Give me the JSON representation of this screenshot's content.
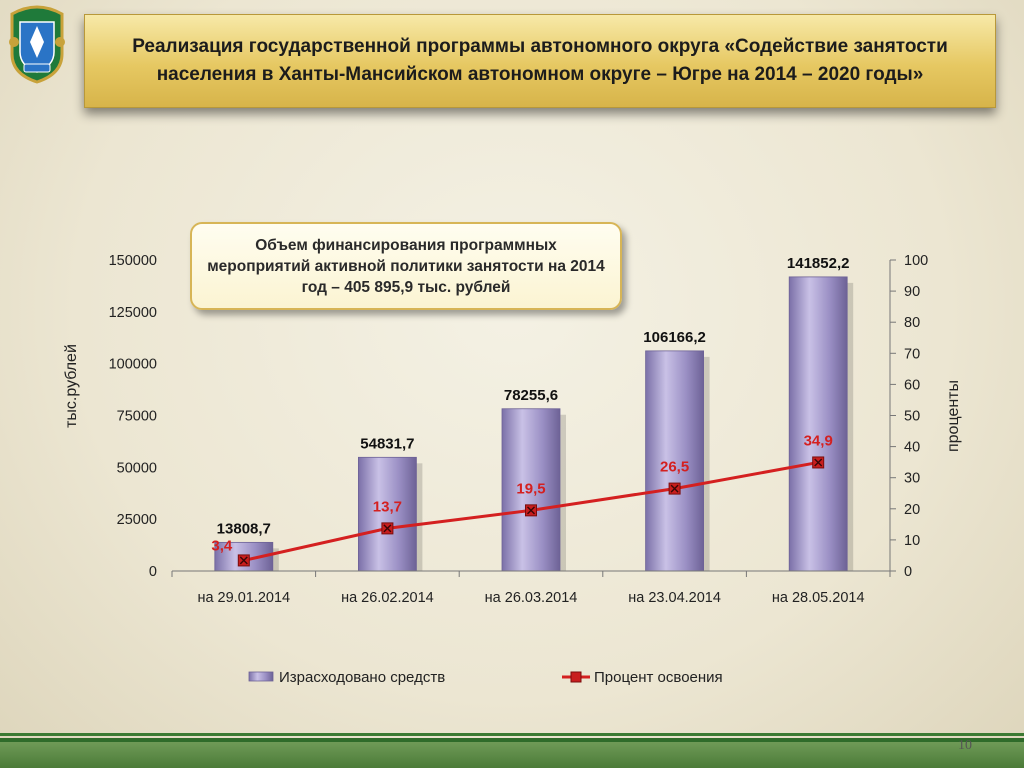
{
  "header": {
    "title": "Реализация государственной программы автономного округа «Содействие занятости населения в Ханты-Мансийском автономном  округе – Югре на 2014 – 2020 годы»"
  },
  "callout": {
    "text": "Объем финансирования программных мероприятий активной политики занятости на 2014 год – 405 895,9 тыс. рублей"
  },
  "page_number": "10",
  "colors": {
    "bar": "#9a8fc4",
    "bar_dark": "#6d6296",
    "line": "#d42020",
    "marker": "#c81e1e",
    "pct_label": "#d42020",
    "footer": "#3b7a33"
  },
  "chart_data": {
    "type": "bar",
    "categories": [
      "на 29.01.2014",
      "на 26.02.2014",
      "на 26.03.2014",
      "на 23.04.2014",
      "на 28.05.2014"
    ],
    "series": [
      {
        "name": "Израсходовано  средств",
        "type": "bar",
        "axis": "left",
        "values": [
          13808.7,
          54831.7,
          78255.6,
          106166.2,
          141852.2
        ],
        "labels": [
          "13808,7",
          "54831,7",
          "78255,6",
          "106166,2",
          "141852,2"
        ]
      },
      {
        "name": "Процент освоения",
        "type": "line",
        "axis": "right",
        "values": [
          3.4,
          13.7,
          19.5,
          26.5,
          34.9
        ],
        "labels": [
          "3,4",
          "13,7",
          "19,5",
          "26,5",
          "34,9"
        ]
      }
    ],
    "ylabel": "тыс.рублей",
    "y2label": "проценты",
    "ylim": [
      0,
      150000
    ],
    "y2lim": [
      0,
      100
    ],
    "yticks": [
      "0",
      "25000",
      "50000",
      "75000",
      "100000",
      "125000",
      "150000"
    ],
    "y2ticks": [
      "0",
      "10",
      "20",
      "30",
      "40",
      "50",
      "60",
      "70",
      "80",
      "90",
      "100"
    ],
    "grid": false,
    "legend_position": "bottom"
  }
}
